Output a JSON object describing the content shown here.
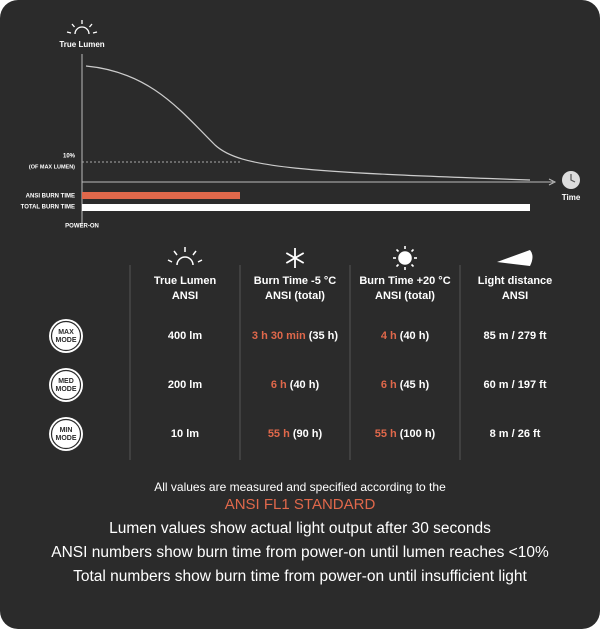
{
  "diagram": {
    "y_label": "True Lumen",
    "x_label": "Time",
    "threshold_label": "10%",
    "threshold_sub": "(OF MAX LUMEN)",
    "ansi_bar_label": "ANSI BURN TIME",
    "total_bar_label": "TOTAL BURN TIME",
    "start_label": "POWER-ON"
  },
  "table": {
    "headers": [
      [
        "True Lumen",
        "ANSI"
      ],
      [
        "Burn Time -5 °C",
        "ANSI (total)"
      ],
      [
        "Burn Time +20 °C",
        "ANSI (total)"
      ],
      [
        "Light distance",
        "ANSI"
      ]
    ],
    "rows": [
      {
        "mode": [
          "MAX",
          "MODE"
        ],
        "cells": [
          {
            "text": "400 lm"
          },
          {
            "highlight": "3 h 30 min",
            "rest": "(35 h)"
          },
          {
            "highlight": "4 h",
            "rest": "(40 h)"
          },
          {
            "text": "85 m / 279 ft"
          }
        ]
      },
      {
        "mode": [
          "MED",
          "MODE"
        ],
        "cells": [
          {
            "text": "200 lm"
          },
          {
            "highlight": "6 h",
            "rest": "(40 h)"
          },
          {
            "highlight": "6 h",
            "rest": "(45 h)"
          },
          {
            "text": "60 m / 197 ft"
          }
        ]
      },
      {
        "mode": [
          "MIN",
          "MODE"
        ],
        "cells": [
          {
            "text": "10 lm"
          },
          {
            "highlight": "55 h",
            "rest": "(90 h)"
          },
          {
            "highlight": "55 h",
            "rest": "(100 h)"
          },
          {
            "text": "8 m / 26 ft"
          }
        ]
      }
    ]
  },
  "footer": {
    "note": "All values are measured and specified according to the",
    "standard": "ANSI FL1 STANDARD",
    "lines": [
      "Lumen values show actual light output after 30 seconds",
      "ANSI numbers show burn time from power-on until lumen reaches <10%",
      "Total numbers show burn time from power-on until insufficient light"
    ]
  }
}
